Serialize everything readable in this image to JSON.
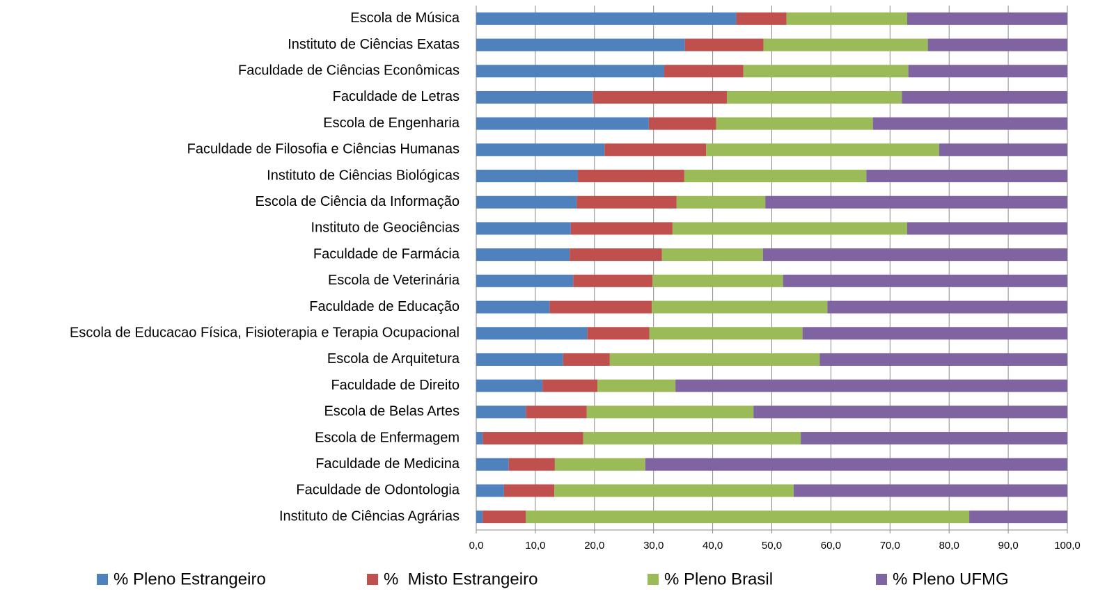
{
  "chart_data": {
    "type": "stacked_barh",
    "categories": [
      "Escola de Música",
      "Instituto de Ciências Exatas",
      "Faculdade de Ciências Econômicas",
      "Faculdade de Letras",
      "Escola de Engenharia",
      "Faculdade de Filosofia e Ciências Humanas",
      "Instituto de Ciências Biológicas",
      "Escola de Ciência da Informação",
      "Instituto de Geociências",
      "Faculdade de Farmácia",
      "Escola de Veterinária",
      "Faculdade de Educação",
      "Escola de Educacao Física, Fisioterapia e Terapia Ocupacional",
      "Escola de Arquitetura",
      "Faculdade de Direito",
      "Escola de Belas Artes",
      "Escola de Enfermagem",
      "Faculdade de Medicina",
      "Faculdade de Odontologia",
      "Instituto de Ciências Agrárias"
    ],
    "series": [
      {
        "name": "% Pleno Estrangeiro",
        "color": "#4f81bd",
        "values": [
          44.0,
          35.3,
          31.8,
          19.7,
          29.2,
          21.7,
          17.2,
          17.0,
          16.0,
          15.8,
          16.4,
          12.4,
          18.8,
          14.7,
          11.2,
          8.4,
          1.1,
          5.5,
          4.7,
          1.1
        ]
      },
      {
        "name": "%  Misto Estrangeiro",
        "color": "#c0504d",
        "values": [
          8.5,
          13.3,
          13.4,
          22.7,
          11.4,
          17.2,
          18.0,
          16.9,
          17.2,
          15.6,
          13.4,
          17.3,
          10.5,
          7.9,
          9.3,
          10.3,
          17.0,
          7.8,
          8.5,
          7.3
        ]
      },
      {
        "name": "% Pleno Brasil",
        "color": "#9bbb59",
        "values": [
          20.4,
          27.8,
          27.9,
          29.6,
          26.5,
          39.4,
          30.8,
          15.0,
          39.7,
          17.1,
          22.1,
          29.7,
          25.9,
          35.5,
          13.2,
          28.2,
          36.8,
          15.3,
          40.5,
          75.0
        ]
      },
      {
        "name": "% Pleno UFMG",
        "color": "#8064a2",
        "values": [
          27.1,
          23.6,
          26.9,
          28.0,
          32.9,
          21.7,
          34.0,
          51.1,
          27.1,
          51.5,
          48.1,
          40.6,
          44.8,
          41.9,
          66.3,
          53.1,
          45.1,
          71.4,
          46.3,
          16.6
        ]
      }
    ],
    "xlim": [
      0,
      100
    ],
    "xticks": [
      {
        "value": 0,
        "label": "0,0"
      },
      {
        "value": 10,
        "label": "10,0"
      },
      {
        "value": 20,
        "label": "20,0"
      },
      {
        "value": 30,
        "label": "30,0"
      },
      {
        "value": 40,
        "label": "40,0"
      },
      {
        "value": 50,
        "label": "50,0"
      },
      {
        "value": 60,
        "label": "60,0"
      },
      {
        "value": 70,
        "label": "70,0"
      },
      {
        "value": 80,
        "label": "80,0"
      },
      {
        "value": 90,
        "label": "90,0"
      },
      {
        "value": 100,
        "label": "100,0"
      }
    ],
    "grid": true,
    "legend": "bottom"
  }
}
